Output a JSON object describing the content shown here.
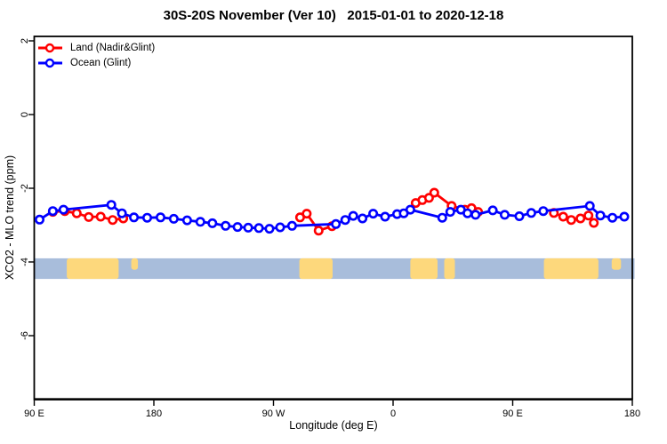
{
  "chart_data": {
    "type": "line",
    "title": "30S-20S November (Ver 10)   2015-01-01 to 2020-12-18",
    "xlabel": "Longitude (deg E)",
    "ylabel": "XCO2 - MLO trend (ppm)",
    "x_axis_note": "longitude axis wraps: 90E eastward to 180 (second pass), 450 deg total",
    "xlim_deg": [
      90,
      540
    ],
    "ylim": [
      -7.7,
      2.1
    ],
    "grid": false,
    "legend_position": "top-left",
    "x_ticks": [
      {
        "value": 90,
        "label": "90 E"
      },
      {
        "value": 180,
        "label": "180"
      },
      {
        "value": 270,
        "label": "90 W"
      },
      {
        "value": 360,
        "label": "0"
      },
      {
        "value": 450,
        "label": "90 E"
      },
      {
        "value": 540,
        "label": "180"
      }
    ],
    "y_ticks": [
      {
        "value": 2,
        "label": "2"
      },
      {
        "value": 0,
        "label": "0"
      },
      {
        "value": -2,
        "label": "-2"
      },
      {
        "value": -4,
        "label": "-4"
      },
      {
        "value": -6,
        "label": "-6"
      }
    ],
    "legend": [
      {
        "label": "Land (Nadir&Glint)",
        "color": "#ff0000"
      },
      {
        "label": "Ocean (Glint)",
        "color": "#0000ff"
      }
    ],
    "series": [
      {
        "name": "Land (Nadir&Glint)",
        "color": "#ff0000",
        "segments": [
          [
            [
              104,
              -2.64
            ],
            [
              113,
              -2.62
            ],
            [
              122,
              -2.68
            ],
            [
              131,
              -2.78
            ],
            [
              140,
              -2.77
            ],
            [
              149,
              -2.86
            ],
            [
              157,
              -2.82
            ]
          ],
          [
            [
              290,
              -2.79
            ],
            [
              295,
              -2.69
            ],
            [
              304,
              -3.15
            ],
            [
              314,
              -3.03
            ]
          ],
          [
            [
              377,
              -2.4
            ],
            [
              382,
              -2.32
            ],
            [
              387,
              -2.26
            ],
            [
              391,
              -2.12
            ],
            [
              404,
              -2.48
            ],
            [
              414,
              -2.58
            ],
            [
              419,
              -2.54
            ],
            [
              424,
              -2.64
            ]
          ],
          [
            [
              481,
              -2.67
            ],
            [
              488,
              -2.77
            ],
            [
              494,
              -2.86
            ],
            [
              501,
              -2.82
            ],
            [
              507,
              -2.74
            ],
            [
              511,
              -2.94
            ]
          ]
        ]
      },
      {
        "name": "Ocean (Glint)",
        "color": "#0000ff",
        "segments": [
          [
            [
              94,
              -2.85
            ],
            [
              104,
              -2.62
            ],
            [
              112,
              -2.58
            ],
            [
              148,
              -2.45
            ],
            [
              156,
              -2.68
            ],
            [
              165,
              -2.79
            ],
            [
              175,
              -2.8
            ],
            [
              185,
              -2.79
            ],
            [
              195,
              -2.83
            ],
            [
              205,
              -2.87
            ],
            [
              215,
              -2.91
            ],
            [
              224,
              -2.95
            ],
            [
              234,
              -3.02
            ],
            [
              243,
              -3.05
            ],
            [
              251,
              -3.07
            ],
            [
              259,
              -3.08
            ],
            [
              267,
              -3.1
            ],
            [
              275,
              -3.06
            ],
            [
              284,
              -3.02
            ],
            [
              317,
              -2.97
            ],
            [
              324,
              -2.86
            ],
            [
              330,
              -2.75
            ],
            [
              337,
              -2.82
            ],
            [
              345,
              -2.69
            ],
            [
              354,
              -2.77
            ],
            [
              363,
              -2.7
            ],
            [
              368,
              -2.68
            ],
            [
              373,
              -2.58
            ],
            [
              397,
              -2.8
            ],
            [
              403,
              -2.64
            ],
            [
              411,
              -2.58
            ],
            [
              416,
              -2.68
            ],
            [
              422,
              -2.72
            ],
            [
              435,
              -2.6
            ],
            [
              444,
              -2.72
            ],
            [
              455,
              -2.76
            ],
            [
              464,
              -2.67
            ],
            [
              473,
              -2.62
            ],
            [
              508,
              -2.48
            ],
            [
              516,
              -2.74
            ],
            [
              525,
              -2.8
            ],
            [
              534,
              -2.77
            ]
          ]
        ]
      }
    ],
    "map_strip": {
      "description": "coastline reference band for 30S-20S latitude zone",
      "ocean_color": "#a8bddb",
      "land_color": "#fdd87c",
      "y_value_range": [
        -3.9,
        -4.46
      ],
      "land_regions": [
        {
          "name": "australia",
          "from": 114.5,
          "to": 153.5
        },
        {
          "name": "new-caledonia",
          "from": 163,
          "to": 168,
          "thin": true
        },
        {
          "name": "south-america",
          "from": 289.5,
          "to": 314.5
        },
        {
          "name": "africa",
          "from": 373,
          "to": 393.5
        },
        {
          "name": "madagascar",
          "from": 398.5,
          "to": 406.5
        },
        {
          "name": "australia-repeat",
          "from": 473.5,
          "to": 514.5
        },
        {
          "name": "new-caledonia-repeat",
          "from": 524.5,
          "to": 531.5,
          "thin": true
        }
      ]
    }
  }
}
